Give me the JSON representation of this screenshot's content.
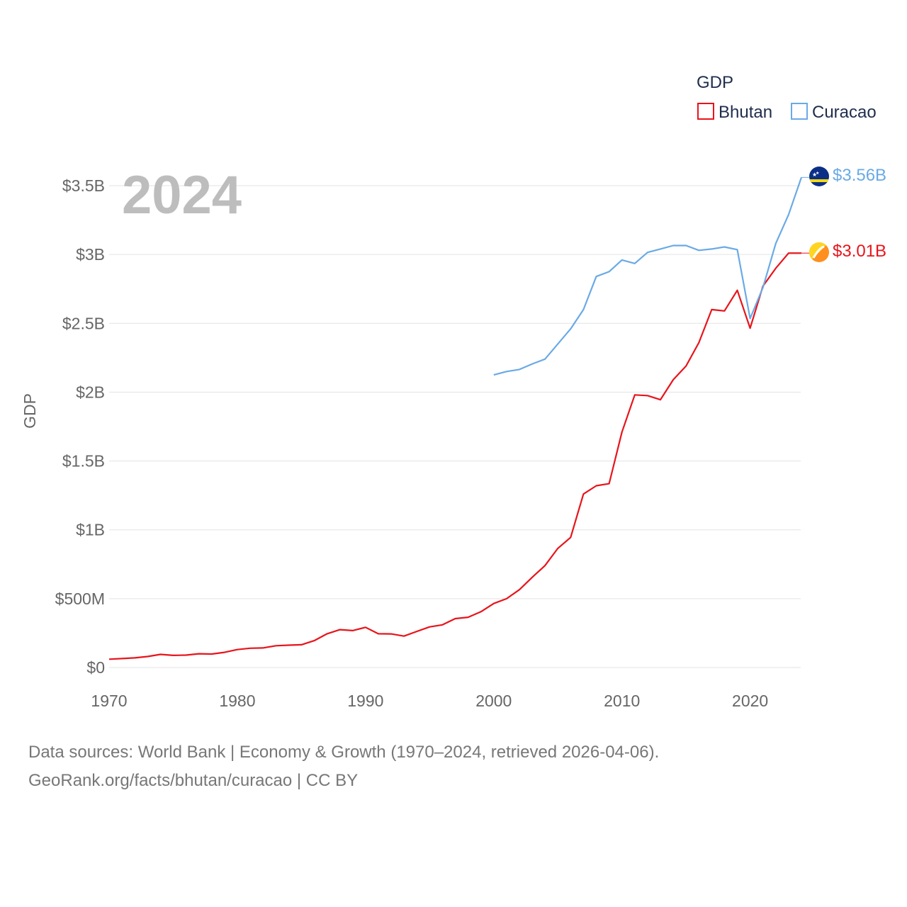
{
  "chart_data": {
    "type": "line",
    "title": "2024",
    "ylabel": "GDP",
    "xlabel": "",
    "xlim": [
      1970,
      2024
    ],
    "ylim": [
      0,
      3.5
    ],
    "x_ticks": [
      1970,
      1980,
      1990,
      2000,
      2010,
      2020
    ],
    "x_tick_labels": [
      "1970",
      "1980",
      "1990",
      "2000",
      "2010",
      "2020"
    ],
    "y_ticks": [
      0,
      0.5,
      1,
      1.5,
      2,
      2.5,
      3,
      3.5
    ],
    "y_tick_labels": [
      "$0",
      "$500M",
      "$1B",
      "$1.5B",
      "$2B",
      "$2.5B",
      "$3B",
      "$3.5B"
    ],
    "grid": true,
    "legend": {
      "title": "GDP",
      "position": "top-right",
      "entries": [
        "Bhutan",
        "Curacao"
      ]
    },
    "series": [
      {
        "name": "Bhutan",
        "color": "#e8141b",
        "end_label": "$3.01B",
        "x": [
          1970,
          1971,
          1972,
          1973,
          1974,
          1975,
          1976,
          1977,
          1978,
          1979,
          1980,
          1981,
          1982,
          1983,
          1984,
          1985,
          1986,
          1987,
          1988,
          1989,
          1990,
          1991,
          1992,
          1993,
          1994,
          1995,
          1996,
          1997,
          1998,
          1999,
          2000,
          2001,
          2002,
          2003,
          2004,
          2005,
          2006,
          2007,
          2008,
          2009,
          2010,
          2011,
          2012,
          2013,
          2014,
          2015,
          2016,
          2017,
          2018,
          2019,
          2020,
          2021,
          2022,
          2023,
          2024
        ],
        "values": [
          0.06,
          0.065,
          0.07,
          0.08,
          0.095,
          0.088,
          0.09,
          0.1,
          0.098,
          0.11,
          0.13,
          0.14,
          0.142,
          0.158,
          0.162,
          0.165,
          0.195,
          0.245,
          0.275,
          0.268,
          0.292,
          0.245,
          0.244,
          0.228,
          0.262,
          0.295,
          0.31,
          0.355,
          0.365,
          0.405,
          0.465,
          0.5,
          0.565,
          0.655,
          0.74,
          0.865,
          0.945,
          1.26,
          1.32,
          1.335,
          1.71,
          1.98,
          1.975,
          1.945,
          2.09,
          2.19,
          2.36,
          2.6,
          2.59,
          2.74,
          2.465,
          2.77,
          2.9,
          3.01,
          3.01
        ]
      },
      {
        "name": "Curacao",
        "color": "#6aaae6",
        "end_label": "$3.56B",
        "x": [
          2000,
          2001,
          2002,
          2003,
          2004,
          2005,
          2006,
          2007,
          2008,
          2009,
          2010,
          2011,
          2012,
          2013,
          2014,
          2015,
          2016,
          2017,
          2018,
          2019,
          2020,
          2021,
          2022,
          2023,
          2024
        ],
        "values": [
          2.125,
          2.15,
          2.165,
          2.205,
          2.24,
          2.35,
          2.46,
          2.6,
          2.84,
          2.875,
          2.96,
          2.935,
          3.015,
          3.04,
          3.065,
          3.065,
          3.03,
          3.04,
          3.055,
          3.035,
          2.535,
          2.76,
          3.08,
          3.29,
          3.56
        ]
      }
    ],
    "footer": [
      "Data sources: World Bank | Economy & Growth (1970–2024, retrieved 2026-04-06).",
      "GeoRank.org/facts/bhutan/curacao | CC BY"
    ]
  }
}
